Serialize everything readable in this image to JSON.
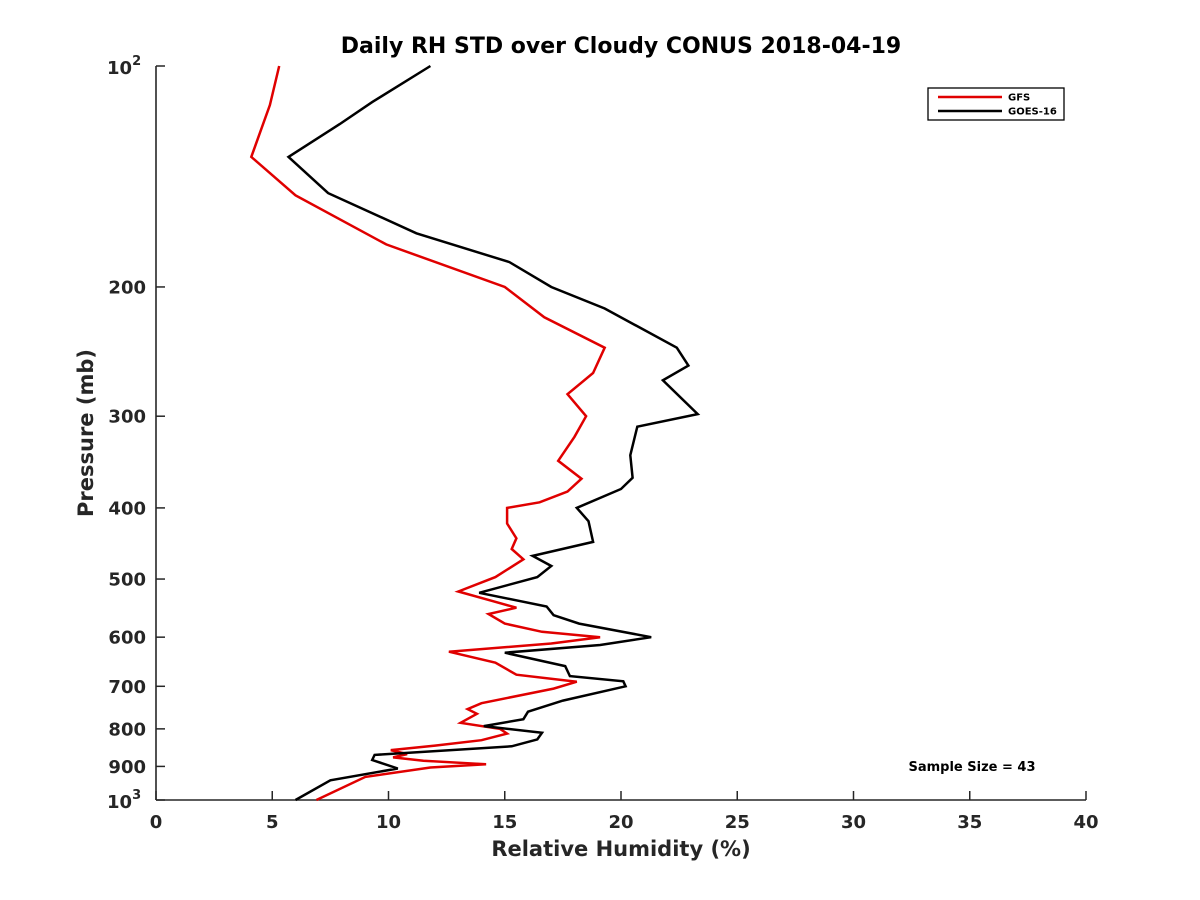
{
  "chart_data": {
    "type": "line",
    "title": "Daily RH STD over Cloudy CONUS 2018-04-19",
    "xlabel": "Relative Humidity (%)",
    "ylabel": "Pressure (mb)",
    "xlim": [
      0,
      40
    ],
    "ylim": [
      100,
      1000
    ],
    "y_scale": "log",
    "y_reversed": true,
    "x_ticks": [
      "0",
      "5",
      "10",
      "15",
      "20",
      "25",
      "30",
      "35",
      "40"
    ],
    "y_ticks": [
      {
        "value": 100,
        "base": "10",
        "exp": "2"
      },
      {
        "value": 200,
        "label": "200"
      },
      {
        "value": 300,
        "label": "300"
      },
      {
        "value": 400,
        "label": "400"
      },
      {
        "value": 500,
        "label": "500"
      },
      {
        "value": 600,
        "label": "600"
      },
      {
        "value": 700,
        "label": "700"
      },
      {
        "value": 800,
        "label": "800"
      },
      {
        "value": 900,
        "label": "900"
      },
      {
        "value": 1000,
        "base": "10",
        "exp": "3"
      }
    ],
    "grid": false,
    "legend_position": "top-right",
    "annotation": "Sample Size = 43",
    "series": [
      {
        "name": "GFS",
        "color": "#e00000",
        "points": [
          [
            5.3,
            100
          ],
          [
            4.9,
            113
          ],
          [
            4.1,
            133
          ],
          [
            6.0,
            150
          ],
          [
            9.9,
            175
          ],
          [
            15.0,
            200
          ],
          [
            16.7,
            220
          ],
          [
            19.3,
            242
          ],
          [
            18.8,
            262
          ],
          [
            17.7,
            280
          ],
          [
            18.5,
            300
          ],
          [
            18.0,
            320
          ],
          [
            17.3,
            345
          ],
          [
            18.3,
            365
          ],
          [
            17.7,
            380
          ],
          [
            16.5,
            393
          ],
          [
            15.1,
            400
          ],
          [
            15.1,
            420
          ],
          [
            15.5,
            440
          ],
          [
            15.3,
            455
          ],
          [
            15.8,
            470
          ],
          [
            14.6,
            497
          ],
          [
            13.0,
            520
          ],
          [
            14.4,
            535
          ],
          [
            15.5,
            547
          ],
          [
            14.3,
            558
          ],
          [
            15.0,
            575
          ],
          [
            16.6,
            590
          ],
          [
            19.1,
            600
          ],
          [
            17.0,
            612
          ],
          [
            12.6,
            628
          ],
          [
            14.6,
            650
          ],
          [
            15.5,
            675
          ],
          [
            18.1,
            690
          ],
          [
            17.1,
            705
          ],
          [
            14.0,
            738
          ],
          [
            13.4,
            752
          ],
          [
            13.8,
            763
          ],
          [
            13.1,
            785
          ],
          [
            14.8,
            800
          ],
          [
            15.1,
            812
          ],
          [
            14.0,
            829
          ],
          [
            12.0,
            843
          ],
          [
            10.1,
            855
          ],
          [
            10.8,
            866
          ],
          [
            10.2,
            875
          ],
          [
            11.5,
            884
          ],
          [
            14.2,
            894
          ],
          [
            11.8,
            903
          ],
          [
            9.0,
            930
          ],
          [
            6.9,
            1000
          ]
        ]
      },
      {
        "name": "GOES-16",
        "color": "#000000",
        "points": [
          [
            11.8,
            100
          ],
          [
            9.3,
            112
          ],
          [
            7.9,
            120
          ],
          [
            5.7,
            133
          ],
          [
            7.4,
            149
          ],
          [
            11.2,
            169
          ],
          [
            15.2,
            185
          ],
          [
            17.0,
            200
          ],
          [
            19.3,
            214
          ],
          [
            22.4,
            242
          ],
          [
            22.9,
            256
          ],
          [
            21.8,
            268
          ],
          [
            23.3,
            298
          ],
          [
            20.7,
            310
          ],
          [
            20.4,
            339
          ],
          [
            20.5,
            364
          ],
          [
            20.0,
            377
          ],
          [
            18.1,
            400
          ],
          [
            18.6,
            417
          ],
          [
            18.8,
            445
          ],
          [
            16.2,
            465
          ],
          [
            17.0,
            480
          ],
          [
            16.4,
            497
          ],
          [
            13.9,
            522
          ],
          [
            16.8,
            545
          ],
          [
            17.1,
            560
          ],
          [
            18.2,
            575
          ],
          [
            21.3,
            600
          ],
          [
            19.1,
            615
          ],
          [
            15.0,
            630
          ],
          [
            17.6,
            657
          ],
          [
            17.8,
            678
          ],
          [
            20.1,
            689
          ],
          [
            20.2,
            700
          ],
          [
            17.5,
            732
          ],
          [
            16.0,
            758
          ],
          [
            15.8,
            776
          ],
          [
            14.1,
            793
          ],
          [
            16.6,
            810
          ],
          [
            16.4,
            827
          ],
          [
            15.3,
            845
          ],
          [
            9.4,
            868
          ],
          [
            9.3,
            882
          ],
          [
            10.4,
            906
          ],
          [
            7.5,
            940
          ],
          [
            6.0,
            1000
          ]
        ]
      }
    ]
  }
}
